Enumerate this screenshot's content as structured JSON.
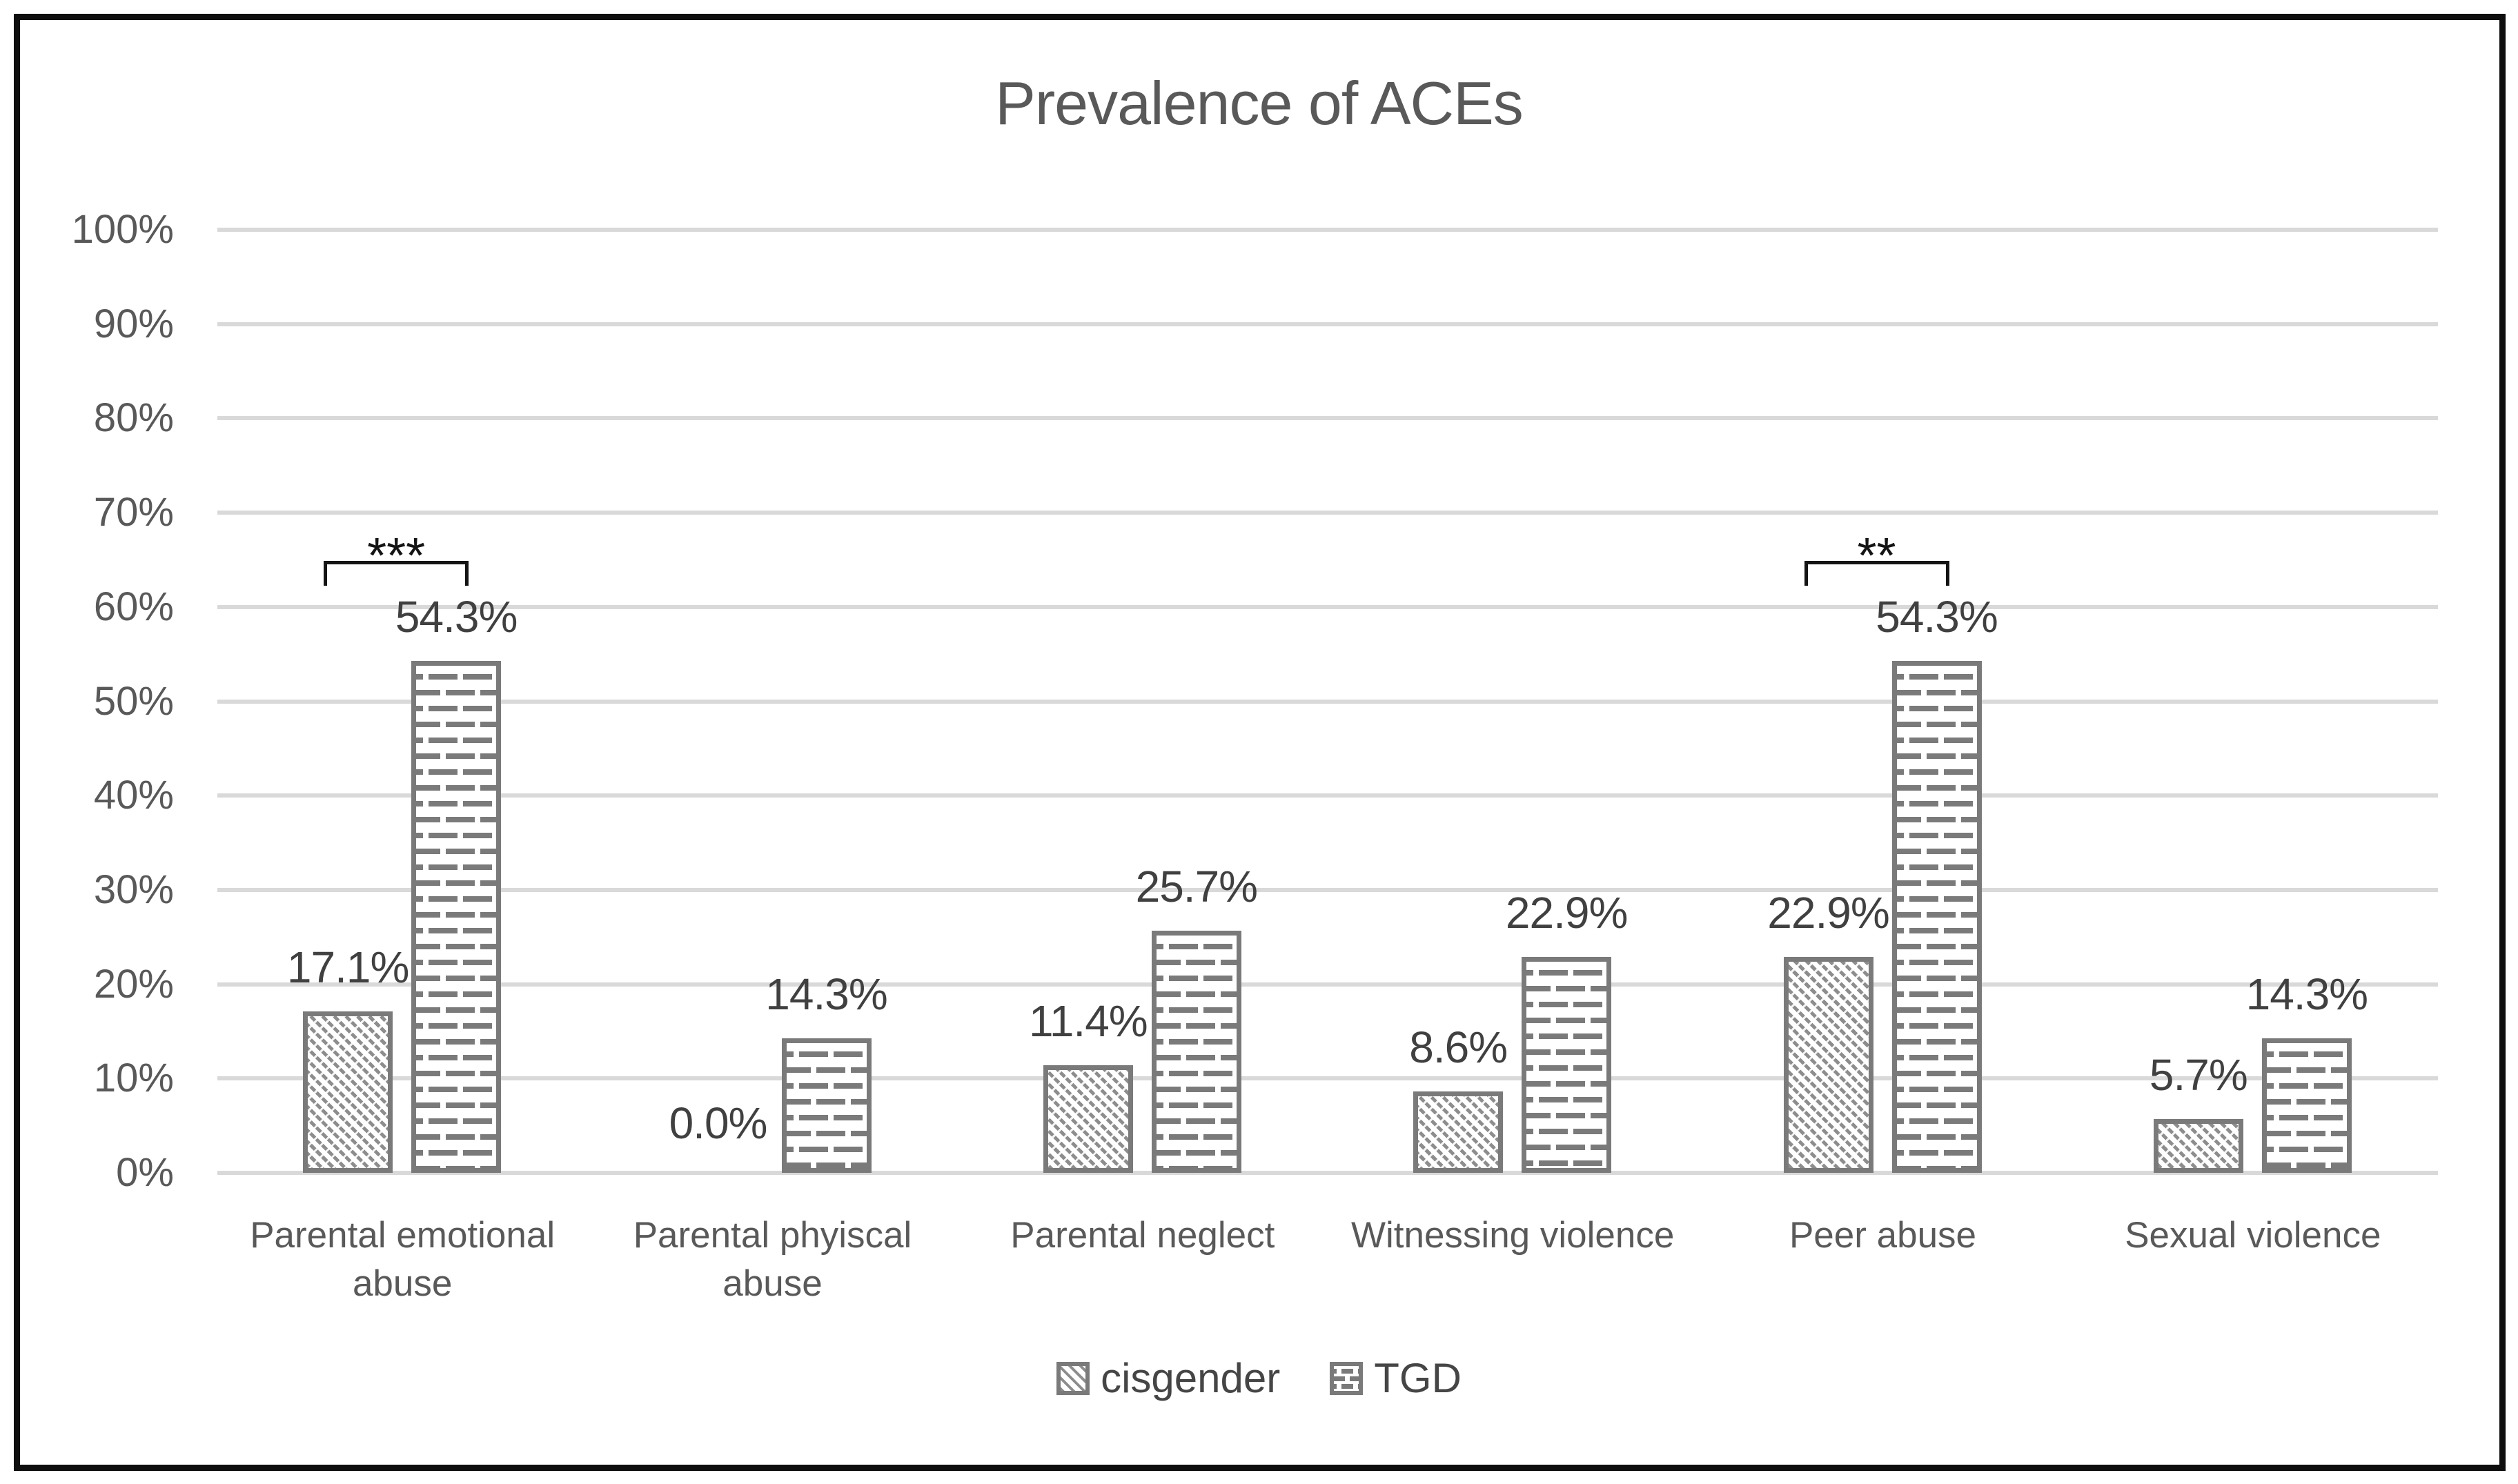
{
  "title": {
    "text": "Prevalence of ACEs"
  },
  "y_axis": {
    "tick_labels": [
      "100%",
      "90%",
      "80%",
      "70%",
      "60%",
      "50%",
      "40%",
      "30%",
      "20%",
      "10%",
      "0%"
    ],
    "min": 0,
    "max": 100,
    "step": 10
  },
  "legend": {
    "items": [
      {
        "label": "cisgender",
        "pattern": "diagonal-hatch"
      },
      {
        "label": "TGD",
        "pattern": "dots"
      }
    ]
  },
  "chart_data": {
    "type": "bar",
    "title": "Prevalence of ACEs",
    "xlabel": "",
    "ylabel": "",
    "ylim": [
      0,
      100
    ],
    "ytick_step": 10,
    "grid": true,
    "legend_position": "bottom",
    "categories": [
      "Parental emotional abuse",
      "Parental phyiscal abuse",
      "Parental neglect",
      "Witnessing violence",
      "Peer abuse",
      "Sexual violence"
    ],
    "category_label_lines": [
      [
        "Parental emotional",
        "abuse"
      ],
      [
        "Parental phyiscal",
        "abuse"
      ],
      [
        "Parental neglect"
      ],
      [
        "Witnessing violence"
      ],
      [
        "Peer abuse"
      ],
      [
        "Sexual violence"
      ]
    ],
    "series": [
      {
        "name": "cisgender",
        "pattern": "diagonal-hatch",
        "values": [
          17.1,
          0.0,
          11.4,
          8.6,
          22.9,
          5.7
        ],
        "data_labels": [
          "17.1%",
          "0.0%",
          "11.4%",
          "8.6%",
          "22.9%",
          "5.7%"
        ]
      },
      {
        "name": "TGD",
        "pattern": "dots",
        "values": [
          54.3,
          14.3,
          25.7,
          22.9,
          54.3,
          14.3
        ],
        "data_labels": [
          "54.3%",
          "14.3%",
          "25.7%",
          "22.9%",
          "54.3%",
          "14.3%"
        ]
      }
    ],
    "significance_annotations": [
      {
        "category": "Parental emotional abuse",
        "category_index": 0,
        "text": "***"
      },
      {
        "category": "Peer abuse",
        "category_index": 4,
        "text": "**"
      }
    ]
  },
  "colors": {
    "background": "#ffffff",
    "frame_border": "#0e0e0e",
    "title_text": "#595959",
    "axis_text": "#595959",
    "data_label_text": "#404040",
    "gridline": "#d9d9d9",
    "bar_border": "#7a7a7a",
    "pattern_gray": "#8d8d8d",
    "annotation": "#141414"
  }
}
